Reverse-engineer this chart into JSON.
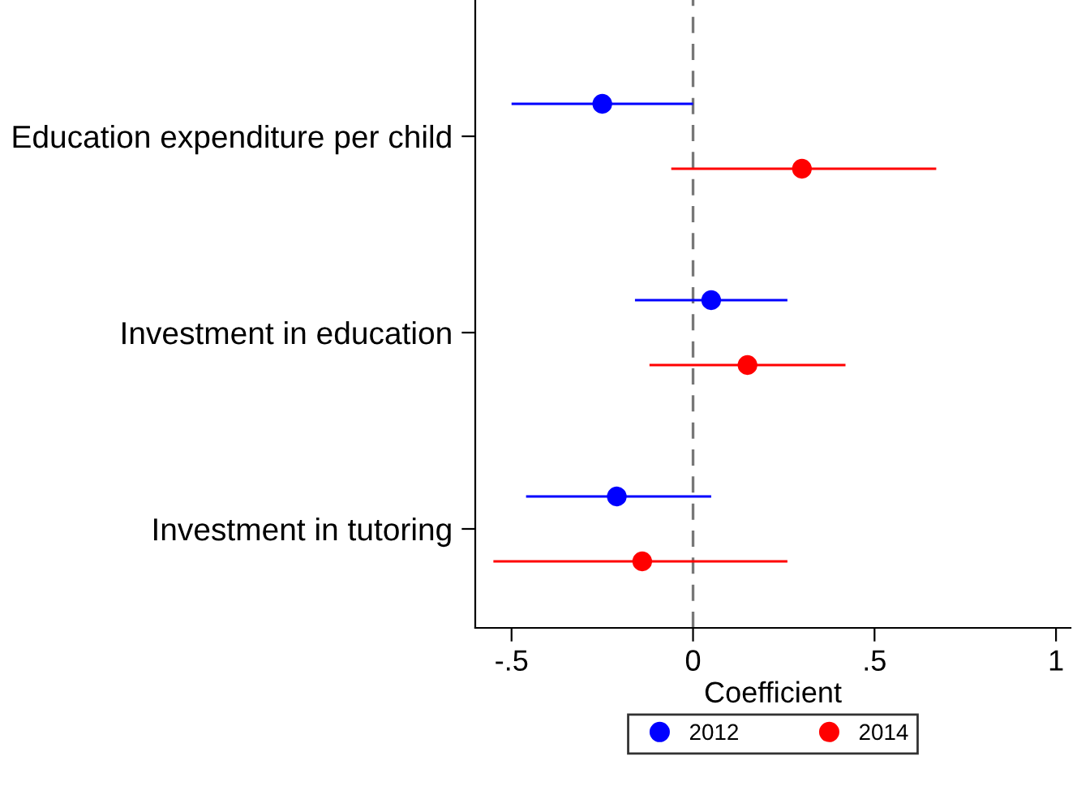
{
  "chart_data": {
    "type": "scatter",
    "orientation": "horizontal",
    "xlabel": "Coefficient",
    "categories": [
      "Education expenditure per child",
      "Investment in education",
      "Investment in tutoring"
    ],
    "series": [
      {
        "name": "2012",
        "color": "#0000ff",
        "values": [
          -0.25,
          0.05,
          -0.21
        ],
        "errors": [
          [
            -0.5,
            0.0
          ],
          [
            -0.16,
            0.26
          ],
          [
            -0.46,
            0.05
          ]
        ]
      },
      {
        "name": "2014",
        "color": "#ff0000",
        "values": [
          0.3,
          0.15,
          -0.14
        ],
        "errors": [
          [
            -0.06,
            0.67
          ],
          [
            -0.12,
            0.42
          ],
          [
            -0.55,
            0.26
          ]
        ]
      }
    ],
    "xlim": [
      -0.6,
      1.04
    ],
    "xticks": [
      {
        "value": -0.5,
        "label": "-.5"
      },
      0,
      {
        "value": 0.5,
        "label": ".5"
      },
      1
    ],
    "ref_lines": [
      {
        "axis": "x",
        "value": 0,
        "color": "#777777",
        "line_style": "dashed"
      }
    ],
    "marker": "circle",
    "grid": false,
    "legend": "bottom"
  }
}
